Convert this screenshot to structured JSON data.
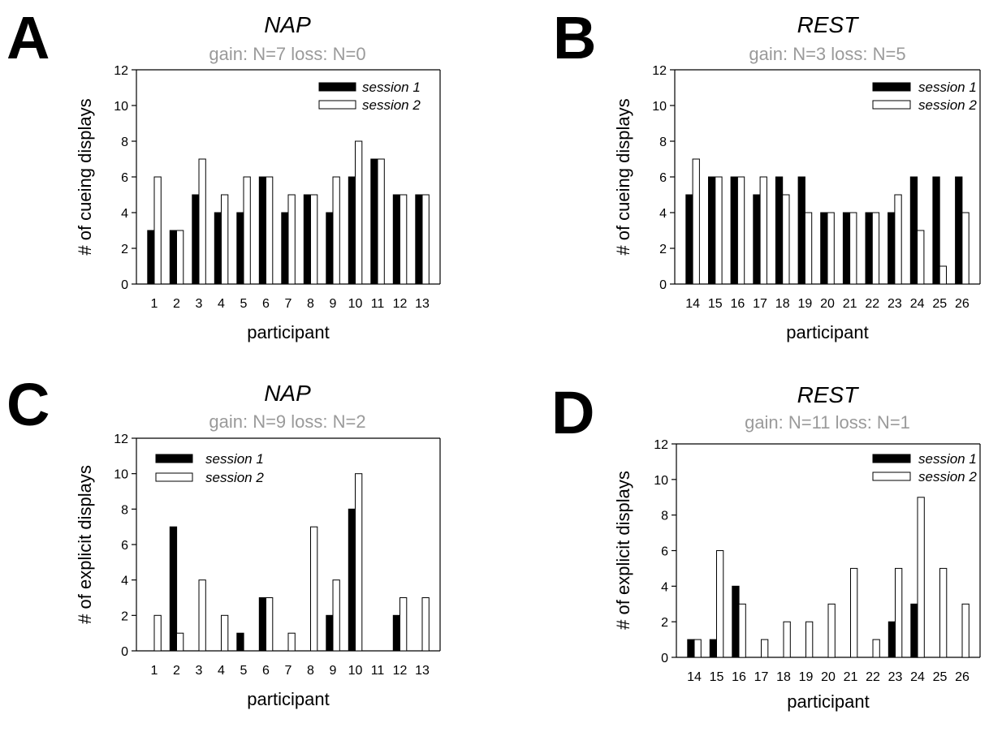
{
  "chart_data": [
    {
      "panel_letter": "A",
      "type": "bar",
      "title": "NAP",
      "subtitle": "gain: N=7 loss: N=0",
      "xlabel": "participant",
      "ylabel": "# of cueing displays",
      "ylim": [
        0,
        12
      ],
      "yticks": [
        0,
        2,
        4,
        6,
        8,
        10,
        12
      ],
      "categories": [
        "1",
        "2",
        "3",
        "4",
        "5",
        "6",
        "7",
        "8",
        "9",
        "10",
        "11",
        "12",
        "13"
      ],
      "series": [
        {
          "name": "session 1",
          "color": "#000000",
          "values": [
            3,
            3,
            5,
            4,
            4,
            6,
            4,
            5,
            4,
            6,
            7,
            5,
            5
          ]
        },
        {
          "name": "session 2",
          "color": "#ffffff",
          "values": [
            6,
            3,
            7,
            5,
            6,
            6,
            5,
            5,
            6,
            8,
            7,
            5,
            5
          ]
        }
      ],
      "legend": "top-right"
    },
    {
      "panel_letter": "B",
      "type": "bar",
      "title": "REST",
      "subtitle": "gain: N=3 loss: N=5",
      "xlabel": "participant",
      "ylabel": "# of cueing displays",
      "ylim": [
        0,
        12
      ],
      "yticks": [
        0,
        2,
        4,
        6,
        8,
        10,
        12
      ],
      "categories": [
        "14",
        "15",
        "16",
        "17",
        "18",
        "19",
        "20",
        "21",
        "22",
        "23",
        "24",
        "25",
        "26"
      ],
      "series": [
        {
          "name": "session 1",
          "color": "#000000",
          "values": [
            5,
            6,
            6,
            5,
            6,
            6,
            4,
            4,
            4,
            4,
            6,
            6,
            6
          ]
        },
        {
          "name": "session 2",
          "color": "#ffffff",
          "values": [
            7,
            6,
            6,
            6,
            5,
            4,
            4,
            4,
            4,
            5,
            3,
            1,
            4
          ]
        }
      ],
      "legend": "top-right"
    },
    {
      "panel_letter": "C",
      "type": "bar",
      "title": "NAP",
      "subtitle": "gain: N=9 loss: N=2",
      "xlabel": "participant",
      "ylabel": "# of explicit displays",
      "ylim": [
        0,
        12
      ],
      "yticks": [
        0,
        2,
        4,
        6,
        8,
        10,
        12
      ],
      "categories": [
        "1",
        "2",
        "3",
        "4",
        "5",
        "6",
        "7",
        "8",
        "9",
        "10",
        "11",
        "12",
        "13"
      ],
      "series": [
        {
          "name": "session 1",
          "color": "#000000",
          "values": [
            0,
            7,
            0,
            0,
            1,
            3,
            0,
            0,
            2,
            8,
            0,
            2,
            0
          ]
        },
        {
          "name": "session 2",
          "color": "#ffffff",
          "values": [
            2,
            1,
            4,
            2,
            0,
            3,
            1,
            7,
            4,
            10,
            0,
            3,
            3
          ]
        }
      ],
      "legend": "top-left"
    },
    {
      "panel_letter": "D",
      "type": "bar",
      "title": "REST",
      "subtitle": "gain: N=11 loss: N=1",
      "xlabel": "participant",
      "ylabel": "# of explicit displays",
      "ylim": [
        0,
        12
      ],
      "yticks": [
        0,
        2,
        4,
        6,
        8,
        10,
        12
      ],
      "categories": [
        "14",
        "15",
        "16",
        "17",
        "18",
        "19",
        "20",
        "21",
        "22",
        "23",
        "24",
        "25",
        "26"
      ],
      "series": [
        {
          "name": "session 1",
          "color": "#000000",
          "values": [
            1,
            1,
            4,
            0,
            0,
            0,
            0,
            0,
            0,
            2,
            3,
            0,
            0
          ]
        },
        {
          "name": "session 2",
          "color": "#ffffff",
          "values": [
            1,
            6,
            3,
            1,
            2,
            2,
            3,
            5,
            1,
            5,
            9,
            5,
            3
          ]
        }
      ],
      "legend": "top-right"
    }
  ]
}
